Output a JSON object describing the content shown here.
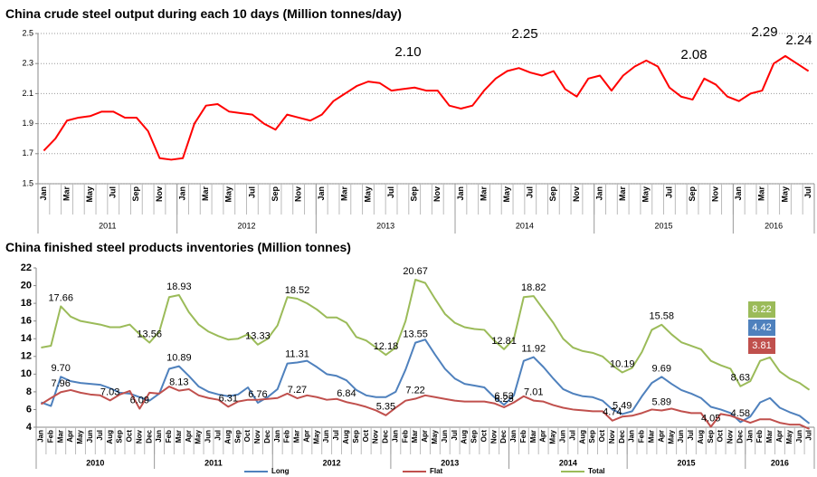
{
  "chart_data": [
    {
      "type": "line",
      "title": "China crude steel output during each 10 days (Million tonnes/day)",
      "categories": [
        "Jan",
        null,
        "Mar",
        null,
        "May",
        null,
        "Jul",
        null,
        "Sep",
        null,
        "Nov",
        null,
        "Jan",
        null,
        "Mar",
        null,
        "May",
        null,
        "Jul",
        null,
        "Sep",
        null,
        "Nov",
        null,
        "Jan",
        null,
        "Mar",
        null,
        "May",
        null,
        "Jul",
        null,
        "Sep",
        null,
        "Nov",
        null,
        "Jan",
        null,
        "Mar",
        null,
        "May",
        null,
        "Jul",
        null,
        "Sep",
        null,
        "Nov",
        null,
        "Jan",
        null,
        "Mar",
        null,
        "May",
        null,
        "Jul",
        null,
        "Sep",
        null,
        "Nov",
        null,
        "Jan",
        null,
        "Mar",
        null,
        "May",
        null,
        "Jul"
      ],
      "years": [
        "2011",
        "2012",
        "2013",
        "2014",
        "2015",
        "2016"
      ],
      "series": [
        {
          "color": "#ff0000",
          "values": [
            1.72,
            1.8,
            1.92,
            1.94,
            1.95,
            1.98,
            1.98,
            1.94,
            1.94,
            1.85,
            1.67,
            1.66,
            1.67,
            1.9,
            2.02,
            2.03,
            1.98,
            1.97,
            1.96,
            1.9,
            1.86,
            1.96,
            1.94,
            1.92,
            1.96,
            2.05,
            2.1,
            2.15,
            2.18,
            2.17,
            2.12,
            2.13,
            2.14,
            2.12,
            2.12,
            2.02,
            2.0,
            2.02,
            2.12,
            2.2,
            2.25,
            2.27,
            2.24,
            2.22,
            2.25,
            2.13,
            2.08,
            2.2,
            2.22,
            2.12,
            2.22,
            2.28,
            2.32,
            2.28,
            2.14,
            2.08,
            2.06,
            2.2,
            2.16,
            2.08,
            2.05,
            2.1,
            2.12,
            2.3,
            2.35,
            2.3,
            2.25
          ]
        }
      ],
      "annotations": [
        "2.10",
        "2.25",
        "2.08",
        "2.29",
        "2.24"
      ],
      "ylim": [
        1.5,
        2.5
      ],
      "yticks": [
        1.5,
        1.7,
        1.9,
        2.1,
        2.3,
        2.5
      ],
      "grid": true
    },
    {
      "type": "line",
      "title": "China finished steel products inventories (Million tonnes)",
      "categories": [
        "Jan",
        "Feb",
        "Mar",
        "Apr",
        "May",
        "Jun",
        "Jul",
        "Aug",
        "Sep",
        "Oct",
        "Nov",
        "Dec",
        "Jan",
        "Feb",
        "Mar",
        "Apr",
        "May",
        "Jun",
        "Jul",
        "Aug",
        "Sep",
        "Oct",
        "Nov",
        "Dec",
        "Jan",
        "Feb",
        "Mar",
        "Apr",
        "May",
        "Jun",
        "Jul",
        "Aug",
        "Sep",
        "Oct",
        "Nov",
        "Dec",
        "Jan",
        "Feb",
        "Mar",
        "Apr",
        "May",
        "Jun",
        "Jul",
        "Aug",
        "Sep",
        "Oct",
        "Nov",
        "Dec",
        "Jan",
        "Feb",
        "Mar",
        "Apr",
        "May",
        "Jun",
        "Jul",
        "Aug",
        "Sep",
        "Oct",
        "Nov",
        "Dec",
        "Jan",
        "Feb",
        "Mar",
        "Apr",
        "May",
        "Jun",
        "Jul",
        "Aug",
        "Sep",
        "Oct",
        "Nov",
        "Dec",
        "Jan",
        "Feb",
        "Mar",
        "Apr",
        "May",
        "Jun",
        "Jul"
      ],
      "years": [
        "2010",
        "2011",
        "2012",
        "2013",
        "2014",
        "2015",
        "2016"
      ],
      "series": [
        {
          "name": "Long",
          "color": "#4f81bd",
          "values": [
            6.8,
            6.4,
            9.7,
            9.2,
            9.0,
            8.9,
            8.8,
            8.4,
            7.9,
            7.8,
            7.4,
            7.0,
            7.8,
            10.6,
            10.89,
            9.8,
            8.6,
            8.0,
            7.7,
            7.5,
            7.7,
            8.5,
            6.76,
            7.4,
            8.3,
            11.2,
            11.31,
            11.5,
            10.8,
            10.0,
            9.8,
            9.3,
            8.2,
            7.6,
            7.4,
            7.4,
            8.0,
            10.5,
            13.55,
            13.9,
            12.2,
            10.6,
            9.5,
            8.9,
            8.7,
            8.5,
            7.4,
            6.53,
            7.6,
            11.5,
            11.92,
            10.8,
            9.5,
            8.3,
            7.8,
            7.5,
            7.4,
            7.0,
            6.0,
            5.49,
            5.8,
            7.5,
            9.0,
            9.69,
            8.9,
            8.2,
            7.8,
            7.3,
            6.3,
            6.0,
            5.6,
            4.58,
            5.2,
            6.8,
            7.3,
            6.2,
            5.7,
            5.3,
            4.42
          ],
          "value_labels": [
            null,
            null,
            "9.70",
            null,
            null,
            null,
            null,
            null,
            null,
            null,
            null,
            null,
            null,
            null,
            "10.89",
            null,
            null,
            null,
            null,
            null,
            null,
            null,
            "6.76",
            null,
            null,
            null,
            "11.31",
            null,
            null,
            null,
            null,
            null,
            null,
            null,
            null,
            null,
            null,
            null,
            "13.55",
            null,
            null,
            null,
            null,
            null,
            null,
            null,
            null,
            "6.53",
            null,
            null,
            "11.92",
            null,
            null,
            null,
            null,
            null,
            null,
            null,
            null,
            "5.49",
            null,
            null,
            null,
            "9.69",
            null,
            null,
            null,
            null,
            null,
            null,
            null,
            "4.58",
            null,
            null,
            null,
            null,
            null,
            null,
            "4.42"
          ]
        },
        {
          "name": "Flat",
          "color": "#c0504d",
          "values": [
            6.6,
            7.3,
            7.96,
            8.2,
            7.9,
            7.7,
            7.6,
            7.03,
            7.7,
            8.1,
            6.09,
            7.9,
            7.8,
            8.6,
            8.13,
            8.3,
            7.6,
            7.3,
            7.1,
            6.31,
            6.9,
            7.1,
            7.1,
            7.2,
            7.3,
            7.8,
            7.27,
            7.6,
            7.4,
            7.1,
            7.2,
            6.84,
            6.6,
            6.3,
            5.9,
            5.35,
            6.2,
            7.0,
            7.22,
            7.6,
            7.4,
            7.2,
            7.0,
            6.9,
            6.9,
            6.9,
            6.7,
            6.25,
            6.8,
            7.5,
            7.01,
            6.9,
            6.5,
            6.2,
            6.0,
            5.9,
            5.8,
            5.8,
            4.74,
            5.2,
            5.3,
            5.6,
            6.0,
            5.89,
            6.1,
            5.8,
            5.6,
            5.6,
            4.05,
            5.5,
            5.3,
            4.9,
            4.5,
            4.9,
            4.9,
            4.5,
            4.3,
            4.3,
            3.81
          ],
          "value_labels": [
            null,
            null,
            "7.96",
            null,
            null,
            null,
            null,
            "7.03",
            null,
            null,
            "6.09",
            null,
            null,
            null,
            "8.13",
            null,
            null,
            null,
            null,
            "6.31",
            null,
            null,
            null,
            null,
            null,
            null,
            "7.27",
            null,
            null,
            null,
            null,
            "6.84",
            null,
            null,
            null,
            "5.35",
            null,
            null,
            "7.22",
            null,
            null,
            null,
            null,
            null,
            null,
            null,
            null,
            "6.25",
            null,
            null,
            "7.01",
            null,
            null,
            null,
            null,
            null,
            null,
            null,
            "4.74",
            null,
            null,
            null,
            null,
            "5.89",
            null,
            null,
            null,
            null,
            "4.05",
            null,
            null,
            null,
            null,
            null,
            null,
            null,
            null,
            null,
            "3.81"
          ]
        },
        {
          "name": "Total",
          "color": "#9bbb59",
          "values": [
            13.0,
            13.2,
            17.66,
            16.5,
            16.0,
            15.8,
            15.6,
            15.3,
            15.3,
            15.6,
            14.5,
            13.56,
            14.8,
            18.7,
            18.93,
            17.0,
            15.6,
            14.8,
            14.3,
            13.9,
            14.0,
            14.5,
            13.33,
            14.0,
            15.5,
            18.7,
            18.52,
            18.0,
            17.3,
            16.4,
            16.4,
            15.8,
            14.2,
            13.8,
            13.0,
            12.18,
            13.0,
            16.0,
            20.67,
            20.3,
            18.5,
            16.8,
            15.8,
            15.3,
            15.1,
            15.0,
            13.8,
            12.81,
            14.0,
            18.7,
            18.82,
            17.3,
            15.8,
            14.0,
            13.0,
            12.6,
            12.4,
            12.0,
            11.0,
            10.19,
            10.7,
            12.5,
            15.0,
            15.58,
            14.5,
            13.6,
            13.2,
            12.8,
            11.5,
            11.0,
            10.6,
            8.63,
            9.2,
            11.5,
            11.9,
            10.3,
            9.5,
            9.0,
            8.22
          ],
          "value_labels": [
            null,
            null,
            "17.66",
            null,
            null,
            null,
            null,
            null,
            null,
            null,
            null,
            "13.56",
            null,
            null,
            "18.93",
            null,
            null,
            null,
            null,
            null,
            null,
            null,
            "13.33",
            null,
            null,
            null,
            "18.52",
            null,
            null,
            null,
            null,
            null,
            null,
            null,
            null,
            "12.18",
            null,
            null,
            "20.67",
            null,
            null,
            null,
            null,
            null,
            null,
            null,
            null,
            "12.81",
            null,
            null,
            "18.82",
            null,
            null,
            null,
            null,
            null,
            null,
            null,
            null,
            "10.19",
            null,
            null,
            null,
            "15.58",
            null,
            null,
            null,
            null,
            null,
            null,
            null,
            "8.63",
            null,
            null,
            null,
            null,
            null,
            null,
            "8.22"
          ]
        }
      ],
      "ylim": [
        4,
        22
      ],
      "yticks": [
        4,
        6,
        8,
        10,
        12,
        14,
        16,
        18,
        20,
        22
      ],
      "grid": false
    }
  ]
}
